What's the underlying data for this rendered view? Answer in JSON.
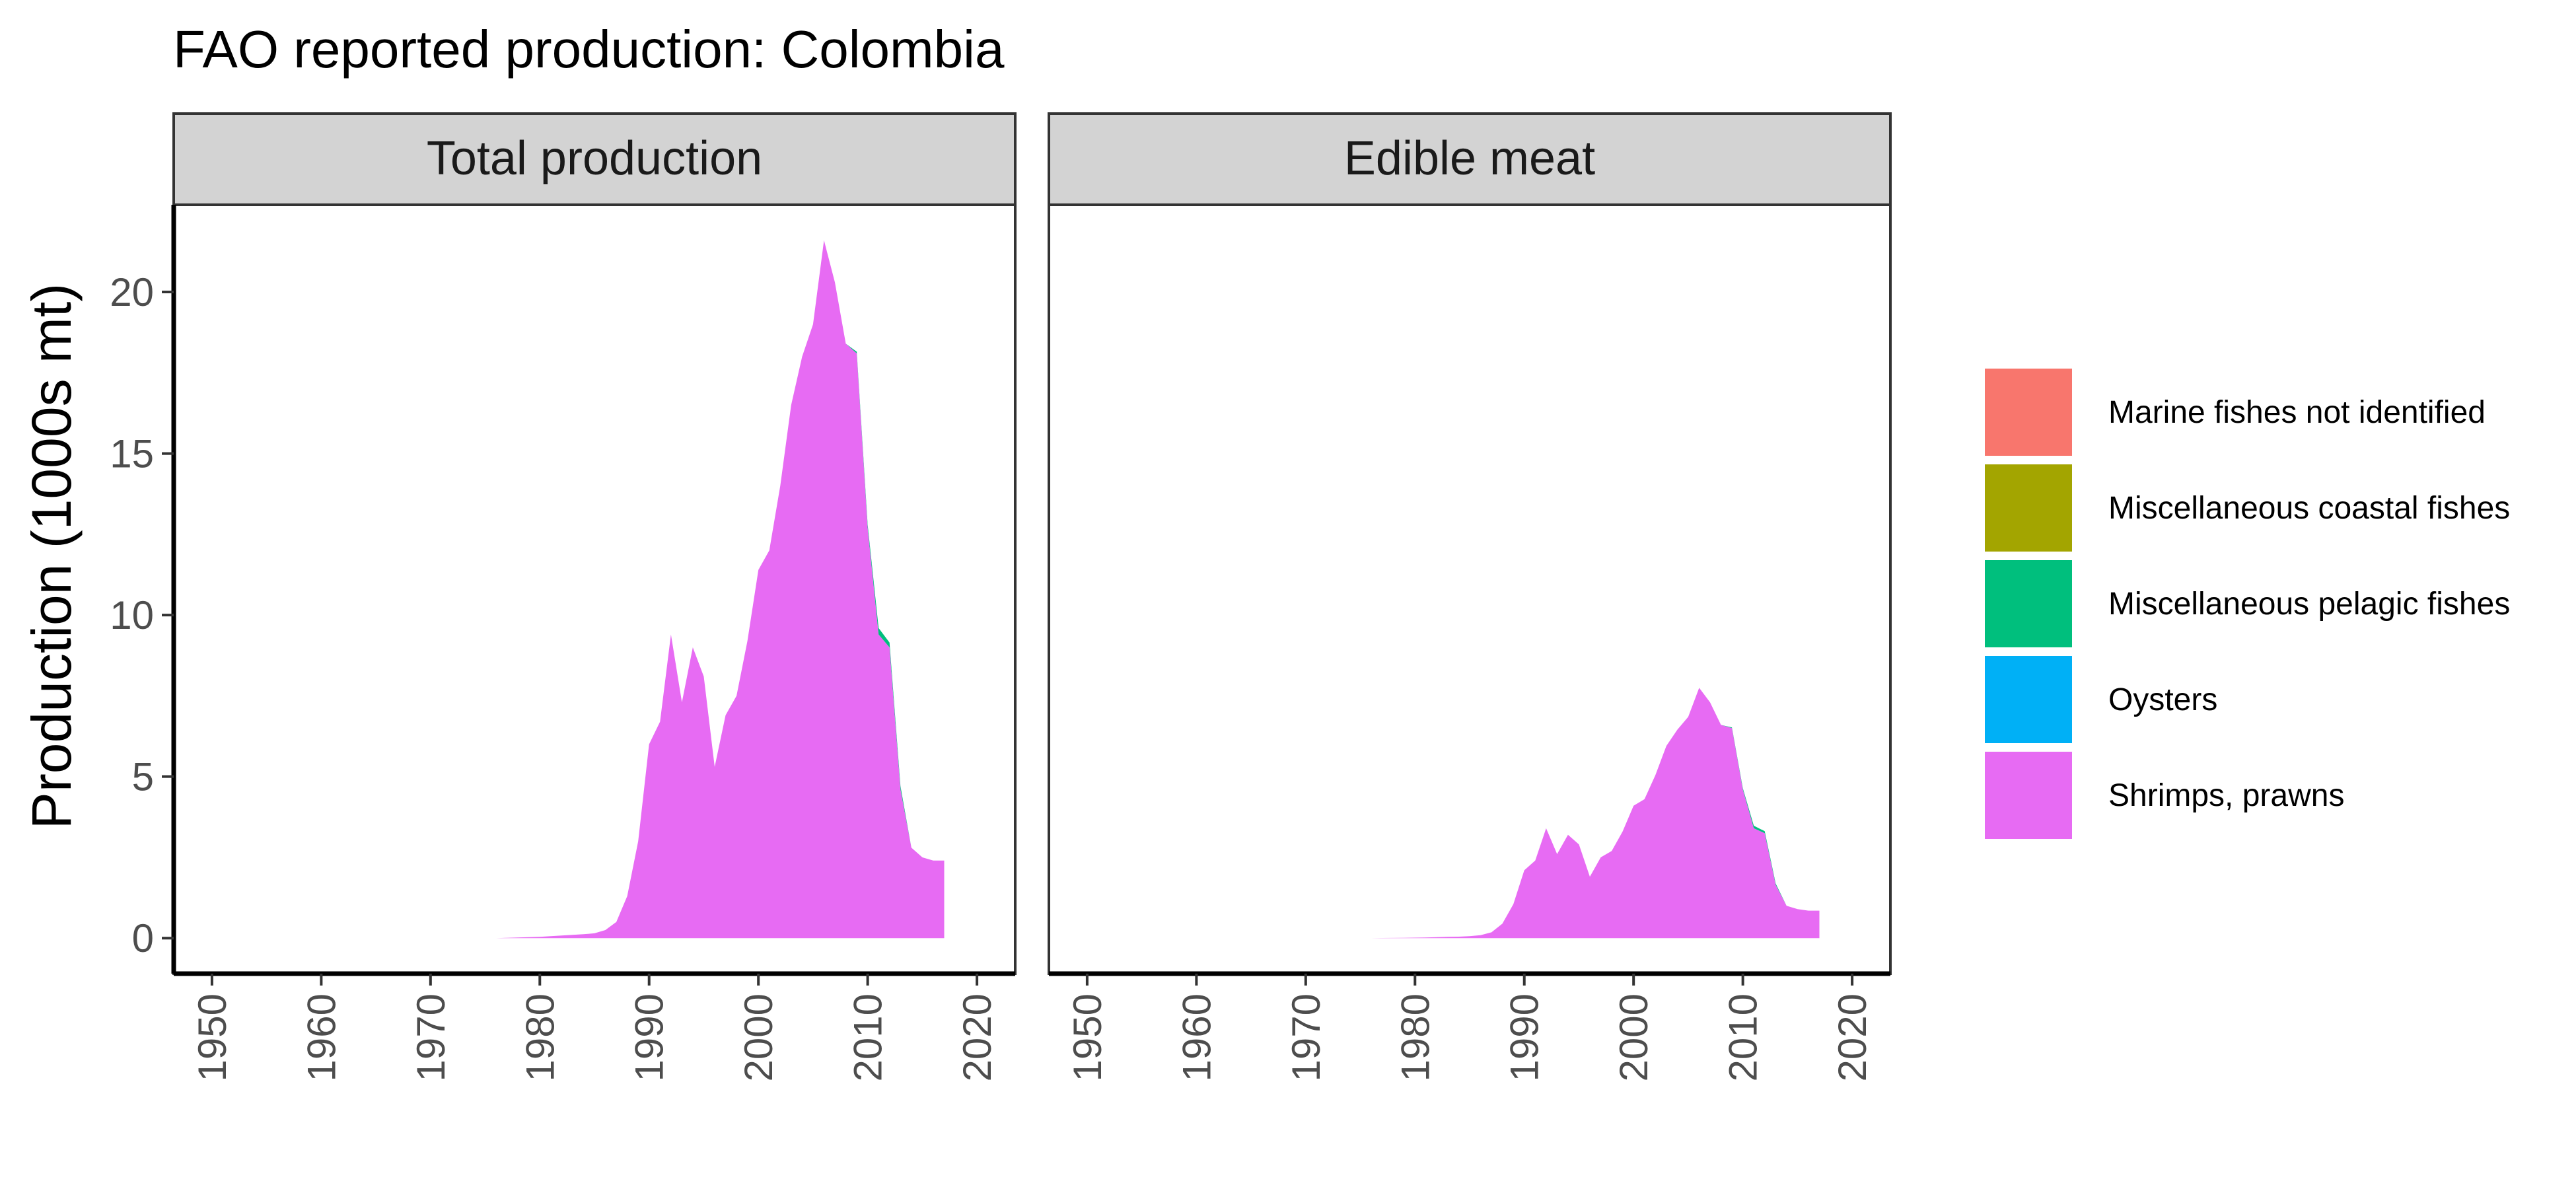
{
  "chart_data": {
    "type": "area",
    "title": "FAO reported production: Colombia",
    "ylabel": "Production (1000s mt)",
    "xlabel": "",
    "xlim": [
      1946.5,
      2023.5
    ],
    "ylim": [
      -1.1,
      22.7
    ],
    "x_ticks": [
      1950,
      1960,
      1970,
      1980,
      1990,
      2000,
      2010,
      2020
    ],
    "y_ticks": [
      0,
      5,
      10,
      15,
      20
    ],
    "grid": false,
    "legend_position": "right",
    "colors": {
      "Marine fishes not identified": "#F8766D",
      "Miscellaneous coastal fishes": "#A3A500",
      "Miscellaneous pelagic fishes": "#00BF7D",
      "Oysters": "#00B0F6",
      "Shrimps, prawns": "#E76BF3"
    },
    "legend": [
      "Marine fishes not identified",
      "Miscellaneous coastal fishes",
      "Miscellaneous pelagic fishes",
      "Oysters",
      "Shrimps, prawns"
    ],
    "panels": [
      {
        "label": "Total production",
        "series": [
          {
            "name": "Shrimps, prawns",
            "x": [
              1976,
              1977,
              1978,
              1979,
              1980,
              1981,
              1982,
              1983,
              1984,
              1985,
              1986,
              1987,
              1988,
              1989,
              1990,
              1991,
              1992,
              1993,
              1994,
              1995,
              1996,
              1997,
              1998,
              1999,
              2000,
              2001,
              2002,
              2003,
              2004,
              2005,
              2006,
              2007,
              2008,
              2009,
              2010,
              2011,
              2012,
              2013,
              2014,
              2015,
              2016,
              2017
            ],
            "values": [
              0,
              0.01,
              0.02,
              0.03,
              0.04,
              0.06,
              0.08,
              0.1,
              0.12,
              0.15,
              0.25,
              0.5,
              1.3,
              3,
              6,
              6.7,
              9.4,
              7.3,
              9,
              8.1,
              5.3,
              6.9,
              7.5,
              9.2,
              11.4,
              12,
              14,
              16.5,
              18,
              19,
              21.6,
              20.3,
              18.4,
              18.1,
              12.7,
              9.4,
              9,
              4.6,
              2.8,
              2.5,
              2.4,
              2.4
            ]
          },
          {
            "name": "Miscellaneous pelagic fishes",
            "x": [
              2008,
              2009,
              2010,
              2011,
              2012,
              2013,
              2014
            ],
            "values": [
              0,
              0.05,
              0.1,
              0.2,
              0.15,
              0.1,
              0
            ]
          }
        ]
      },
      {
        "label": "Edible meat",
        "series": [
          {
            "name": "Shrimps, prawns",
            "x": [
              1976,
              1977,
              1978,
              1979,
              1980,
              1981,
              1982,
              1983,
              1984,
              1985,
              1986,
              1987,
              1988,
              1989,
              1990,
              1991,
              1992,
              1993,
              1994,
              1995,
              1996,
              1997,
              1998,
              1999,
              2000,
              2001,
              2002,
              2003,
              2004,
              2005,
              2006,
              2007,
              2008,
              2009,
              2010,
              2011,
              2012,
              2013,
              2014,
              2015,
              2016,
              2017
            ],
            "values": [
              0,
              0.004,
              0.007,
              0.01,
              0.015,
              0.02,
              0.03,
              0.04,
              0.045,
              0.06,
              0.09,
              0.18,
              0.45,
              1.05,
              2.1,
              2.4,
              3.4,
              2.6,
              3.2,
              2.9,
              1.9,
              2.5,
              2.7,
              3.3,
              4.1,
              4.3,
              5.05,
              5.95,
              6.45,
              6.85,
              7.75,
              7.3,
              6.6,
              6.5,
              4.6,
              3.4,
              3.25,
              1.65,
              1,
              0.9,
              0.85,
              0.85
            ]
          },
          {
            "name": "Miscellaneous pelagic fishes",
            "x": [
              2008,
              2009,
              2010,
              2011,
              2012,
              2013,
              2014
            ],
            "values": [
              0,
              0.02,
              0.04,
              0.08,
              0.06,
              0.04,
              0
            ]
          }
        ]
      }
    ]
  }
}
